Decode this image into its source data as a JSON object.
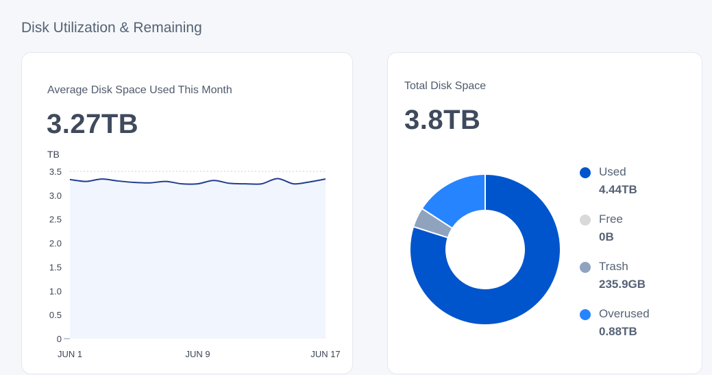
{
  "section_title": "Disk Utilization & Remaining",
  "average_card": {
    "label": "Average Disk Space Used This Month",
    "value": "3.27TB",
    "unit_label": "TB"
  },
  "total_card": {
    "label": "Total Disk Space",
    "value": "3.8TB"
  },
  "legend": [
    {
      "name": "Used",
      "value": "4.44TB",
      "color": "#0055cc"
    },
    {
      "name": "Free",
      "value": "0B",
      "color": "#d9d9d9"
    },
    {
      "name": "Trash",
      "value": "235.9GB",
      "color": "#8fa3bf"
    },
    {
      "name": "Overused",
      "value": "0.88TB",
      "color": "#2684ff"
    }
  ],
  "chart_data": [
    {
      "type": "area",
      "title": "Average Disk Space Used This Month",
      "ylabel": "TB",
      "ylim": [
        0,
        3.5
      ],
      "y_ticks": [
        "0",
        "0.5",
        "1.0",
        "1.5",
        "2.0",
        "2.5",
        "3.0",
        "3.5"
      ],
      "x_ticks": [
        "JUN 1",
        "JUN 9",
        "JUN 17"
      ],
      "x": [
        1,
        2,
        3,
        4,
        5,
        6,
        7,
        8,
        9,
        10,
        11,
        12,
        13,
        14,
        15,
        16,
        17
      ],
      "values": [
        3.33,
        3.29,
        3.34,
        3.3,
        3.27,
        3.26,
        3.29,
        3.24,
        3.24,
        3.31,
        3.25,
        3.24,
        3.24,
        3.35,
        3.24,
        3.28,
        3.34
      ],
      "line_color": "#1f3d8f",
      "fill_color": "#f1f5fd",
      "grid": false
    },
    {
      "type": "pie",
      "title": "Total Disk Space",
      "donut": true,
      "slices": [
        {
          "name": "Used",
          "value": 4.44,
          "color": "#0055cc"
        },
        {
          "name": "Free",
          "value": 0,
          "color": "#d9d9d9"
        },
        {
          "name": "Trash",
          "value": 0.2359,
          "color": "#8fa3bf"
        },
        {
          "name": "Overused",
          "value": 0.88,
          "color": "#2684ff"
        }
      ]
    }
  ]
}
